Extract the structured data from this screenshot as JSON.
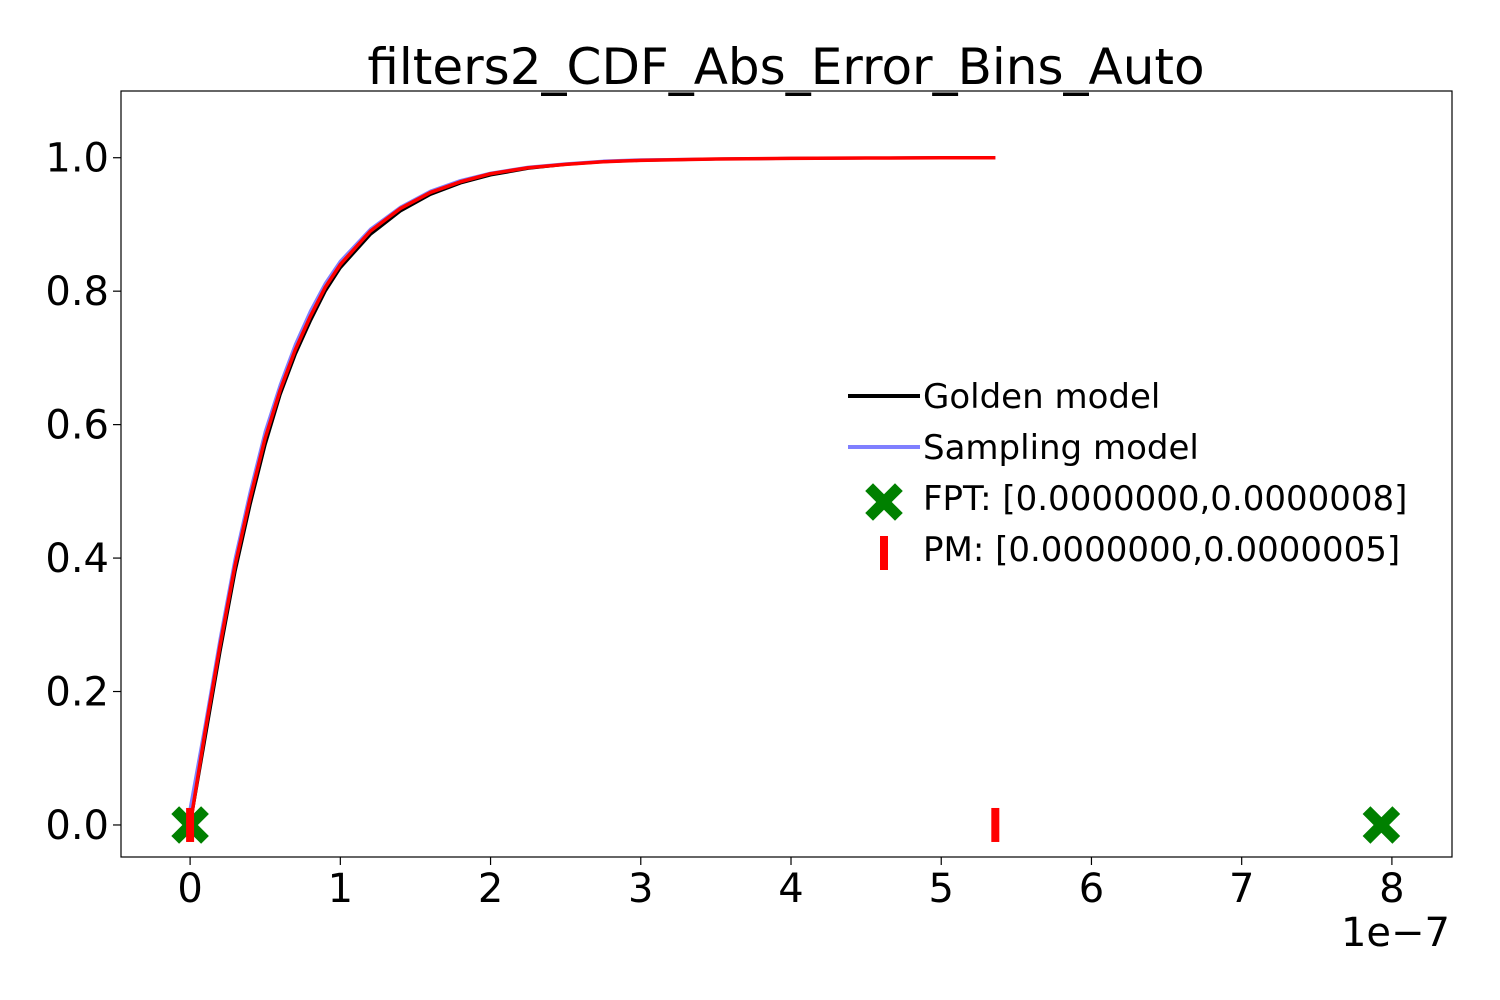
{
  "chart_data": {
    "type": "line",
    "title": "filters2_CDF_Abs_Error_Bins_Auto",
    "xlabel": "",
    "ylabel": "",
    "x_offset_text": "1e−7",
    "xlim": [
      -4.6e-08,
      8.4e-07
    ],
    "ylim": [
      -0.048,
      1.1
    ],
    "x_ticks": [
      {
        "value": 0,
        "label": "0"
      },
      {
        "value": 1e-07,
        "label": "1"
      },
      {
        "value": 2e-07,
        "label": "2"
      },
      {
        "value": 3e-07,
        "label": "3"
      },
      {
        "value": 4e-07,
        "label": "4"
      },
      {
        "value": 5e-07,
        "label": "5"
      },
      {
        "value": 6e-07,
        "label": "6"
      },
      {
        "value": 7e-07,
        "label": "7"
      },
      {
        "value": 8e-07,
        "label": "8"
      }
    ],
    "y_ticks": [
      {
        "value": 0.0,
        "label": "0.0"
      },
      {
        "value": 0.2,
        "label": "0.2"
      },
      {
        "value": 0.4,
        "label": "0.4"
      },
      {
        "value": 0.6,
        "label": "0.6"
      },
      {
        "value": 0.8,
        "label": "0.8"
      },
      {
        "value": 1.0,
        "label": "1.0"
      }
    ],
    "grid": false,
    "legend_position": "center-right",
    "series": [
      {
        "name": "Golden model",
        "kind": "line",
        "color": "#000000",
        "x": [
          0,
          1e-08,
          2e-08,
          3e-08,
          4e-08,
          5e-08,
          6e-08,
          7e-08,
          8e-08,
          9e-08,
          1e-07,
          1.2e-07,
          1.4e-07,
          1.6e-07,
          1.8e-07,
          2e-07,
          2.25e-07,
          2.5e-07,
          2.75e-07,
          3e-07,
          3.5e-07,
          4e-07,
          4.5e-07,
          5e-07,
          5.36e-07
        ],
        "y": [
          0.0,
          0.13,
          0.26,
          0.38,
          0.48,
          0.57,
          0.645,
          0.705,
          0.755,
          0.8,
          0.835,
          0.885,
          0.92,
          0.945,
          0.962,
          0.974,
          0.984,
          0.99,
          0.994,
          0.996,
          0.998,
          0.999,
          0.9995,
          1.0,
          1.0
        ]
      },
      {
        "name": "Sampling model",
        "kind": "line",
        "color": "#7f7fff",
        "x": [
          -2e-09,
          1e-08,
          2e-08,
          3e-08,
          4e-08,
          5e-08,
          6e-08,
          7e-08,
          8e-08,
          9e-08,
          1e-07,
          1.2e-07,
          1.4e-07,
          1.6e-07,
          1.8e-07,
          2e-07,
          2.25e-07,
          2.5e-07,
          2.75e-07,
          3e-07,
          3.5e-07,
          4e-07,
          4.5e-07,
          5e-07,
          5.36e-07
        ],
        "y": [
          0.0,
          0.15,
          0.28,
          0.4,
          0.5,
          0.59,
          0.66,
          0.72,
          0.77,
          0.812,
          0.845,
          0.893,
          0.926,
          0.95,
          0.966,
          0.977,
          0.986,
          0.991,
          0.995,
          0.997,
          0.998,
          0.999,
          0.9995,
          1.0,
          1.0
        ]
      },
      {
        "name": "",
        "kind": "line",
        "color": "#ff0000",
        "x": [
          0,
          1e-08,
          2e-08,
          3e-08,
          4e-08,
          5e-08,
          6e-08,
          7e-08,
          8e-08,
          9e-08,
          1e-07,
          1.2e-07,
          1.4e-07,
          1.6e-07,
          1.8e-07,
          2e-07,
          2.25e-07,
          2.5e-07,
          2.75e-07,
          3e-07,
          3.5e-07,
          4e-07,
          4.5e-07,
          5e-07,
          5.36e-07
        ],
        "y": [
          0.0,
          0.14,
          0.27,
          0.39,
          0.49,
          0.58,
          0.652,
          0.712,
          0.762,
          0.806,
          0.84,
          0.89,
          0.924,
          0.948,
          0.964,
          0.976,
          0.985,
          0.99,
          0.994,
          0.996,
          0.998,
          0.999,
          0.9995,
          1.0,
          1.0
        ]
      }
    ],
    "markers": [
      {
        "name": "FPT: [0.0000000,0.0000008]",
        "kind": "x-marker",
        "color": "#008000",
        "x": [
          0,
          7.93e-07
        ],
        "y": [
          0,
          0
        ]
      },
      {
        "name": "PM: [0.0000000,0.0000005]",
        "kind": "vline-marker",
        "color": "#ff0000",
        "x": [
          0,
          5.36e-07
        ],
        "y": [
          0,
          0
        ]
      }
    ],
    "legend": [
      {
        "label": "Golden model",
        "kind": "line",
        "color": "#000000"
      },
      {
        "label": "Sampling model",
        "kind": "line",
        "color": "#7f7fff"
      },
      {
        "label": "FPT: [0.0000000,0.0000008]",
        "kind": "x-marker",
        "color": "#008000"
      },
      {
        "label": "PM: [0.0000000,0.0000005]",
        "kind": "vline-marker",
        "color": "#ff0000"
      }
    ]
  }
}
